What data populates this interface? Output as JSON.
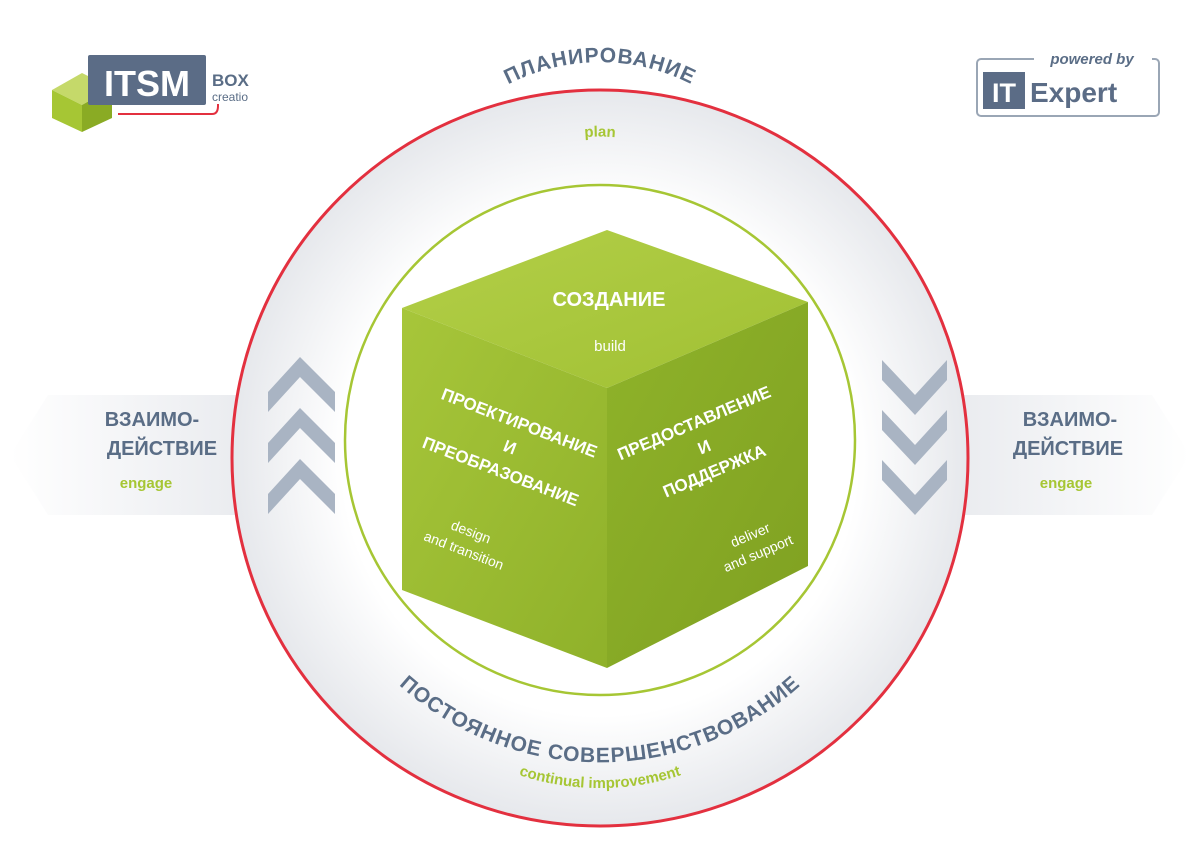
{
  "logo_left": {
    "main": "ITSM",
    "sub1": "BOX",
    "sub2": "creatio"
  },
  "logo_right": {
    "top": "powered by",
    "mark": "IT",
    "word": "Expert"
  },
  "outer_ring": {
    "top": {
      "ru": "ПЛАНИРОВАНИЕ",
      "en": "plan"
    },
    "bottom": {
      "ru": "ПОСТОЯННОЕ СОВЕРШЕНСТВОВАНИЕ",
      "en": "continual improvement"
    }
  },
  "side_left": {
    "line1": "ВЗАИМО-",
    "line2": "ДЕЙСТВИЕ",
    "en": "engage"
  },
  "side_right": {
    "line1": "ВЗАИМО-",
    "line2": "ДЕЙСТВИЕ",
    "en": "engage"
  },
  "cube": {
    "top": {
      "ru": "СОЗДАНИЕ",
      "en": "build"
    },
    "left": {
      "l1": "ПРОЕКТИРОВАНИЕ",
      "l2": "И",
      "l3": "ПРЕОБРАЗОВАНИЕ",
      "en1": "design",
      "en2": "and transition"
    },
    "right": {
      "l1": "ПРЕДОСТАВЛЕНИЕ",
      "l2": "И",
      "l3": "ПОДДЕРЖКА",
      "en1": "deliver",
      "en2": "and support"
    }
  },
  "colors": {
    "ring_red": "#e3303f",
    "green": "#a6c634",
    "slate": "#5a6d86",
    "chevron": "#a9b4c3"
  }
}
